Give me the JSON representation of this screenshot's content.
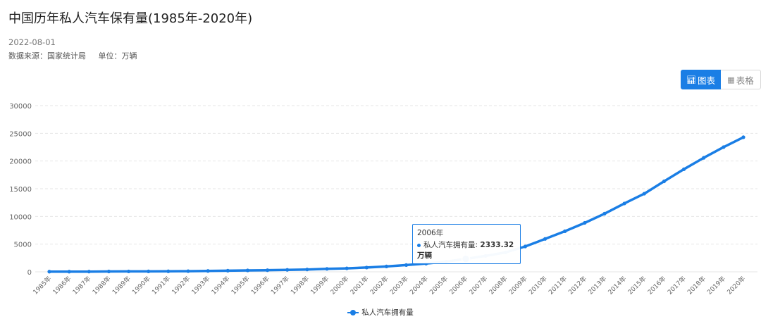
{
  "header": {
    "title": "中国历年私人汽车保有量(1985年-2020年)",
    "date": "2022-08-01",
    "source": "数据来源：国家统计局",
    "unit": "单位：万辆"
  },
  "toolbar": {
    "chart_label": "图表",
    "table_label": "表格",
    "chart_icon": "bar-chart-icon",
    "table_icon": "table-icon"
  },
  "tooltip": {
    "year": "2006年",
    "series": "私人汽车拥有量:",
    "value": "2333.32万辆"
  },
  "colors": {
    "accent": "#1a7ee5",
    "grid": "#e6e6e6",
    "axis_text": "#666666"
  },
  "chart_data": {
    "type": "line",
    "title": "中国历年私人汽车保有量(1985年-2020年)",
    "categories": [
      "1985年",
      "1986年",
      "1987年",
      "1988年",
      "1989年",
      "1990年",
      "1991年",
      "1992年",
      "1993年",
      "1994年",
      "1995年",
      "1996年",
      "1997年",
      "1998年",
      "1999年",
      "2000年",
      "2001年",
      "2002年",
      "2003年",
      "2004年",
      "2005年",
      "2006年",
      "2007年",
      "2008年",
      "2009年",
      "2010年",
      "2011年",
      "2012年",
      "2013年",
      "2014年",
      "2015年",
      "2016年",
      "2017年",
      "2018年",
      "2019年",
      "2020年"
    ],
    "series": [
      {
        "name": "私人汽车拥有量",
        "values": [
          28.49,
          34.71,
          42.29,
          60.42,
          73.12,
          81.62,
          96.04,
          118.2,
          155.77,
          205.42,
          249.96,
          289.67,
          358.36,
          423.65,
          533.88,
          625.33,
          770.78,
          968.98,
          1219.23,
          1481.66,
          1848.07,
          2333.32,
          2876.22,
          3501.39,
          4574.91,
          5938.71,
          7326.79,
          8838.6,
          10501.68,
          12339.36,
          14099.1,
          16330.22,
          18515.11,
          20574.93,
          22508.99,
          24291.19
        ]
      }
    ],
    "yticks": [
      0,
      5000,
      10000,
      15000,
      20000,
      25000,
      30000
    ],
    "ylim": [
      0,
      30000
    ],
    "grid": true,
    "legend": "bottom-center",
    "highlight_index": 21
  }
}
